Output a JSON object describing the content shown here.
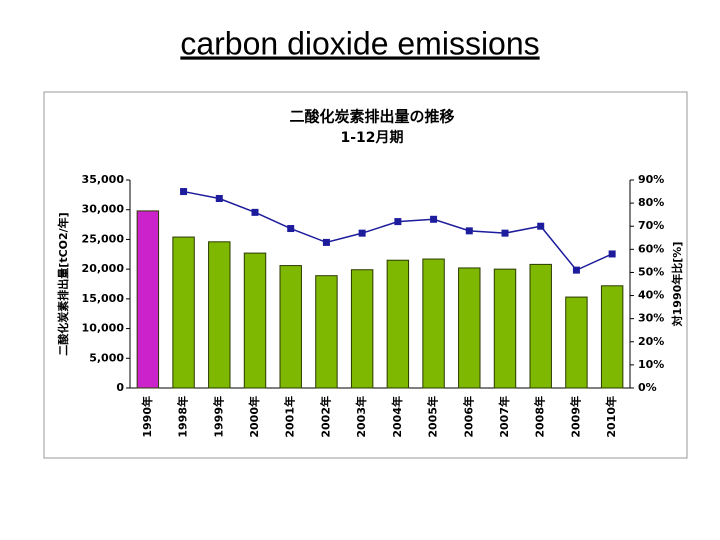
{
  "slide_title": "carbon dioxide emissions",
  "chart_data": {
    "type": "bar-line",
    "title": "二酸化炭素排出量の推移",
    "subtitle": "1-12月期",
    "ylabel": "二酸化炭素排出量[tCO2/年]",
    "y2label": "対1990年比[%]",
    "categories": [
      "1990年",
      "1998年",
      "1999年",
      "2000年",
      "2001年",
      "2002年",
      "2003年",
      "2004年",
      "2005年",
      "2006年",
      "2007年",
      "2008年",
      "2009年",
      "2010年"
    ],
    "series": [
      {
        "type": "bar",
        "color": "#7fb800",
        "colors": [
          "#cc22cc",
          "#7fb800",
          "#7fb800",
          "#7fb800",
          "#7fb800",
          "#7fb800",
          "#7fb800",
          "#7fb800",
          "#7fb800",
          "#7fb800",
          "#7fb800",
          "#7fb800",
          "#7fb800",
          "#7fb800"
        ],
        "values": [
          29800,
          25400,
          24600,
          22700,
          20600,
          18900,
          19900,
          21500,
          21700,
          20200,
          20000,
          20800,
          15300,
          17200
        ]
      },
      {
        "type": "line",
        "axis": "y2",
        "color": "#1c1c9c",
        "values": [
          null,
          85,
          82,
          76,
          69,
          63,
          67,
          72,
          73,
          68,
          67,
          70,
          51,
          58
        ]
      }
    ],
    "ylim": [
      0,
      35000
    ],
    "yticks": [
      0,
      {
        "value": 5000,
        "label": "5,000"
      },
      {
        "value": 10000,
        "label": "10,000"
      },
      {
        "value": 15000,
        "label": "15,000"
      },
      {
        "value": 20000,
        "label": "20,000"
      },
      {
        "value": 25000,
        "label": "25,000"
      },
      {
        "value": 30000,
        "label": "30,000"
      },
      {
        "value": 35000,
        "label": "35,000"
      }
    ],
    "y2lim": [
      0,
      90
    ],
    "y2ticks": [
      {
        "value": 0,
        "label": "0%"
      },
      {
        "value": 10,
        "label": "10%"
      },
      {
        "value": 20,
        "label": "20%"
      },
      {
        "value": 30,
        "label": "30%"
      },
      {
        "value": 40,
        "label": "40%"
      },
      {
        "value": 50,
        "label": "50%"
      },
      {
        "value": 60,
        "label": "60%"
      },
      {
        "value": 70,
        "label": "70%"
      },
      {
        "value": 80,
        "label": "80%"
      },
      {
        "value": 90,
        "label": "90%"
      }
    ],
    "grid": false
  }
}
